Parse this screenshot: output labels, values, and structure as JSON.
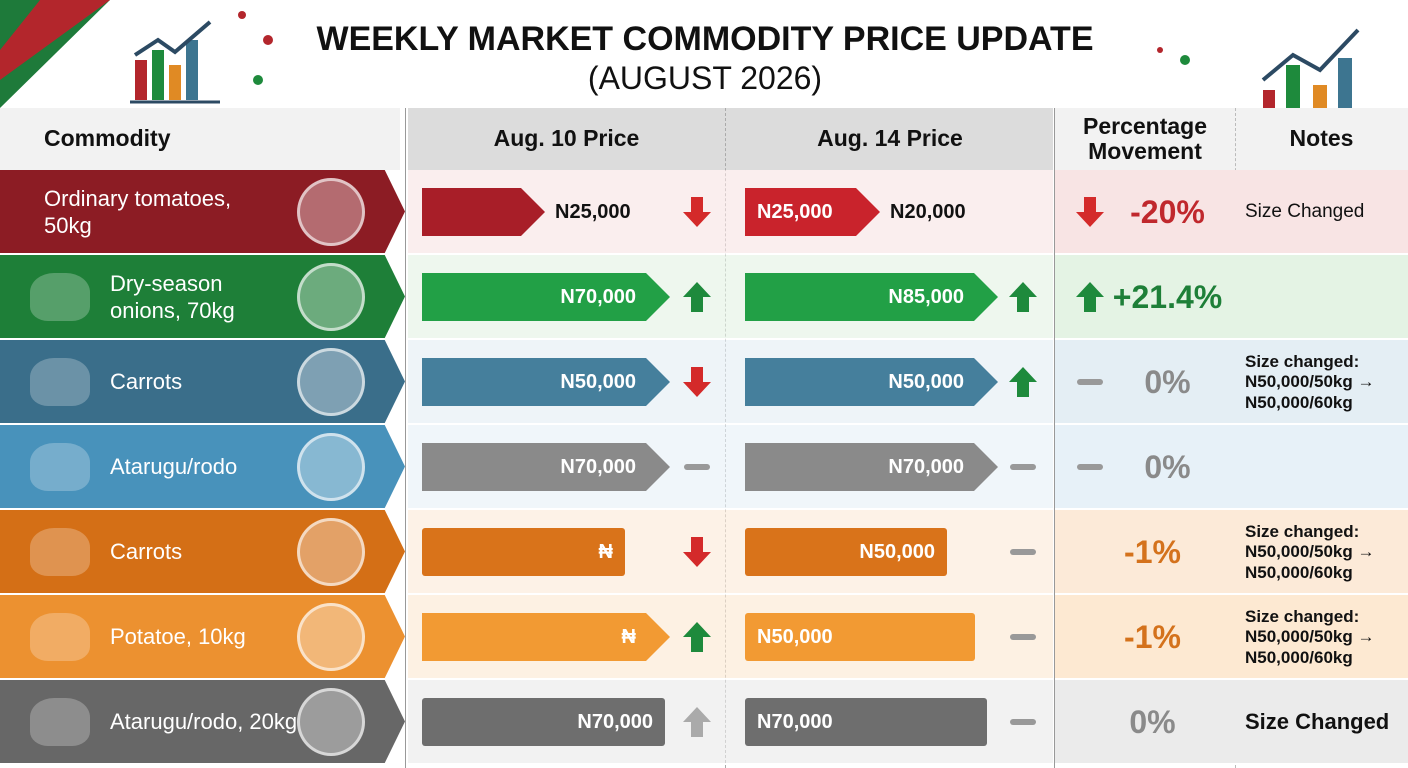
{
  "header": {
    "title": "WEEKLY MARKET COMMODITY PRICE UPDATE",
    "subtitle": "(AUGUST 2026)"
  },
  "table": {
    "columns": [
      "Commodity",
      "Aug. 10 Price",
      "Aug. 14 Price",
      "Percentage\nMovement",
      "Notes"
    ],
    "rows": [
      {
        "commodity": "Ordinary tomatoes,\n50kg",
        "aug10_price": "N25,000",
        "aug14_previous": "N25,000",
        "aug14_price": "N20,000",
        "movement": "-20%",
        "notes": [
          "Size Changed"
        ]
      },
      {
        "commodity": "Dry-season\nonions, 70kg",
        "aug10_price": "N70,000",
        "aug14_price": "N85,000",
        "movement": "+21.4%"
      },
      {
        "commodity": "Carrots",
        "aug10_price": "N50,000",
        "aug14_price": "N50,000",
        "movement": "0%",
        "notes": [
          "Size changed:",
          "N50,000/50kg →",
          "N50,000/60kg"
        ]
      },
      {
        "commodity": "Atarugu/rodo",
        "aug10_price": "N70,000",
        "aug14_price": "N70,000",
        "movement": "0%"
      },
      {
        "commodity": "Carrots",
        "aug10_price": "₦",
        "aug14_price": "N50,000",
        "movement": "-1%",
        "notes": [
          "Size changed:",
          "N50,000/50kg →",
          "N50,000/60kg"
        ]
      },
      {
        "commodity": "Potatoe, 10kg",
        "aug10_price": "₦",
        "aug14_price": "N50,000",
        "movement": "-1%",
        "notes": [
          "Size changed:",
          "N50,000/50kg →",
          "N50,000/60kg"
        ]
      },
      {
        "commodity": "Atarugu/rodo, 20kg",
        "aug10_price": "N70,000",
        "aug14_price": "N70,000",
        "movement": "0%",
        "notes": [
          "Size Changed"
        ]
      }
    ]
  }
}
